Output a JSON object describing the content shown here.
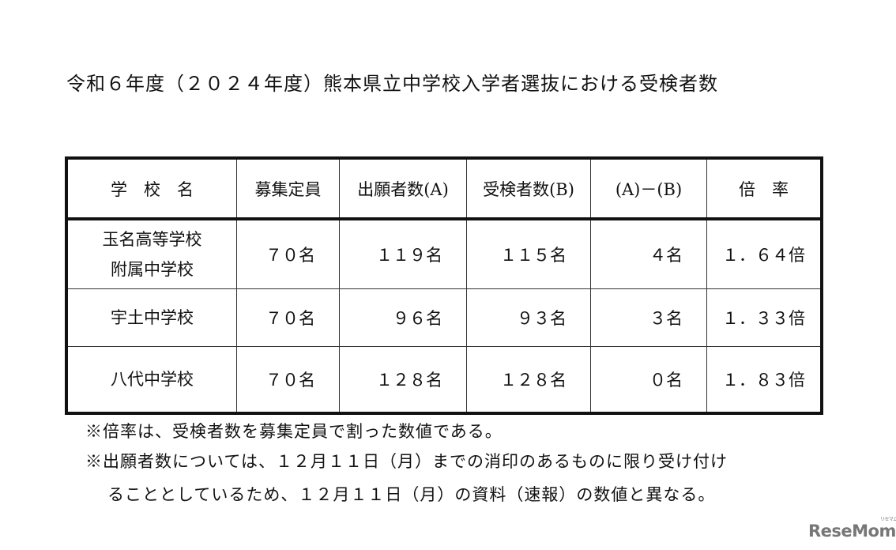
{
  "title": "令和６年度（２０２４年度）熊本県立中学校入学者選抜における受検者数",
  "table": {
    "headers": [
      "学　校　名",
      "募集定員",
      "出願者数(A)",
      "受検者数(B)",
      "(A)－(B)",
      "倍　率"
    ],
    "rows": [
      {
        "name_line1": "玉名高等学校",
        "name_line2": "附属中学校",
        "capacity": "７０名",
        "applicants": "１１９名",
        "examinees": "１１５名",
        "diff": "４名",
        "ratio": "１．６４倍"
      },
      {
        "name_line1": "宇土中学校",
        "name_line2": "",
        "capacity": "７０名",
        "applicants": "９６名",
        "examinees": "９３名",
        "diff": "３名",
        "ratio": "１．３３倍"
      },
      {
        "name_line1": "八代中学校",
        "name_line2": "",
        "capacity": "７０名",
        "applicants": "１２８名",
        "examinees": "１２８名",
        "diff": "０名",
        "ratio": "１．８３倍"
      }
    ]
  },
  "notes": [
    "※倍率は、受検者数を募集定員で割った数値である。",
    "※出願者数については、１２月１１日（月）までの消印のあるものに限り受け付け",
    "ることとしているため、１２月１１日（月）の資料（速報）の数値と異なる。"
  ],
  "logo": {
    "text": "ReseMom",
    "ruby": "リセマム",
    "color": "#777777"
  }
}
